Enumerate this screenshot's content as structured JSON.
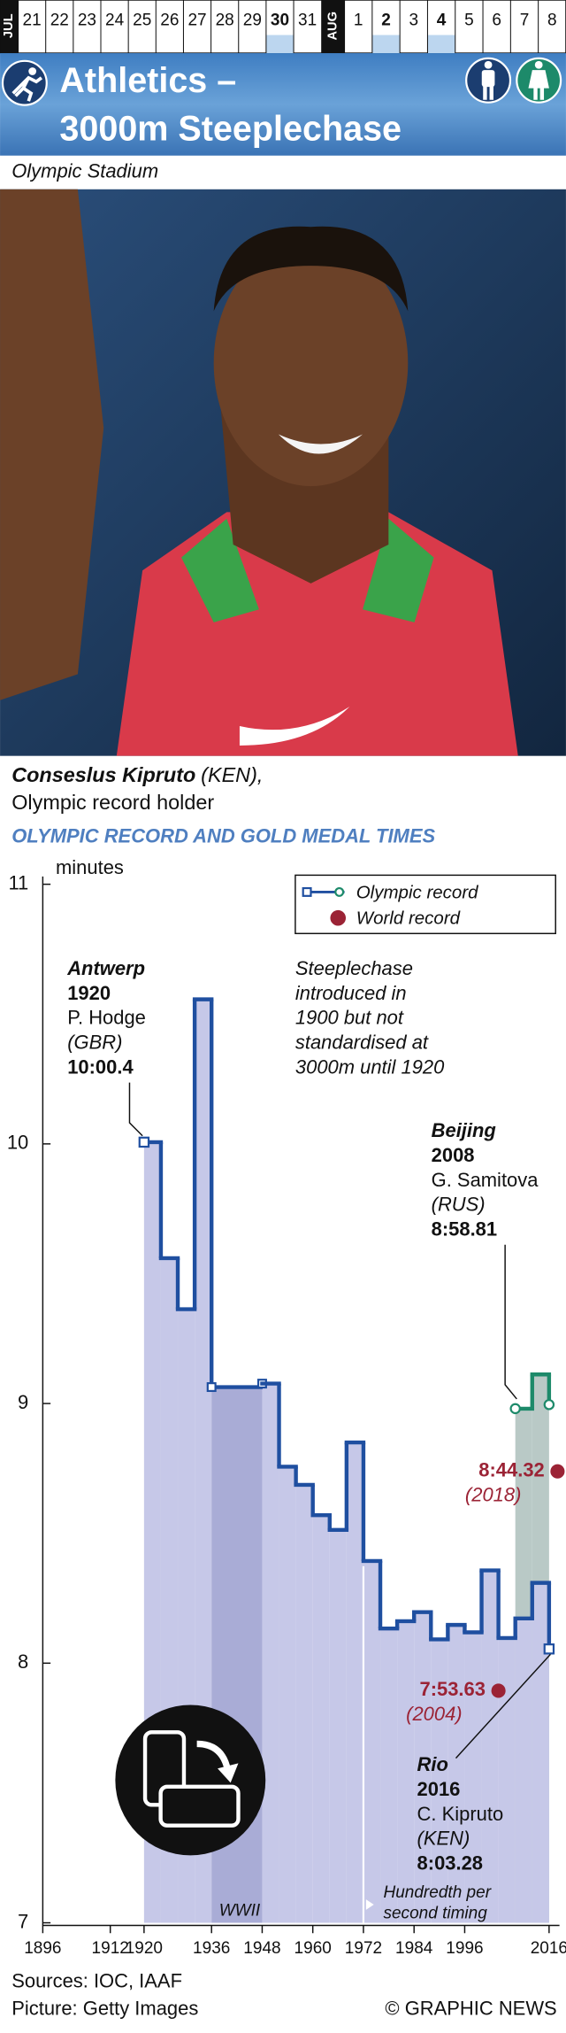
{
  "header": {
    "july_label": "JUL",
    "august_label": "AUG",
    "july_days": [
      "21",
      "22",
      "23",
      "24",
      "25",
      "26",
      "27",
      "28",
      "29",
      "30",
      "31"
    ],
    "august_days": [
      "1",
      "2",
      "3",
      "4",
      "5",
      "6",
      "7",
      "8"
    ],
    "july_highlight": [
      9
    ],
    "august_highlight": [
      1,
      3
    ],
    "title_line1": "Athletics –",
    "title_line2": "3000m Steeplechase",
    "venue": "Olympic Stadium"
  },
  "caption": {
    "name": "Conseslus Kipruto",
    "country": "(KEN),",
    "role": "Olympic record holder"
  },
  "chart_data": {
    "type": "step-line",
    "title": "Olympic Record and Gold Medal Times",
    "y_label": "minutes",
    "xlim": [
      1896,
      2020
    ],
    "xticks": [
      1896,
      1912,
      1920,
      1936,
      1948,
      1960,
      1972,
      1984,
      1996,
      2016
    ],
    "ylim": [
      7,
      11
    ],
    "yticks": [
      7,
      8,
      9,
      10,
      11
    ],
    "series": [
      {
        "name": "Olympic record",
        "color": "#1f4fa0",
        "area_color": "#c6c8e8",
        "gap_area_color": "#a9acd6",
        "x": [
          1920,
          1924,
          1928,
          1932,
          1936,
          1948,
          1952,
          1956,
          1960,
          1964,
          1968,
          1972,
          1976,
          1980,
          1984,
          1988,
          1992,
          1996,
          2000,
          2004,
          2008,
          2012,
          2016
        ],
        "values": [
          10.0067,
          9.56,
          9.3633,
          10.5567,
          9.0633,
          9.0767,
          8.7567,
          8.6867,
          8.57,
          8.5133,
          8.85,
          8.3933,
          8.1333,
          8.1617,
          8.1967,
          8.0918,
          8.1473,
          8.1187,
          8.3572,
          8.0968,
          8.1723,
          8.3093,
          8.0547
        ]
      },
      {
        "color": "#1d8a6a",
        "area_color": "#b9c9c6",
        "x": [
          2008,
          2012,
          2016
        ],
        "values": [
          8.9802,
          9.112,
          8.9958
        ]
      }
    ],
    "world_records": {
      "name": "World record",
      "color": "#9b2335",
      "x": [
        2004,
        2018
      ],
      "values": [
        7.8938,
        8.7387
      ],
      "value_labels": [
        "7:53.63",
        "8:44.32"
      ],
      "year_labels": [
        "(2004)",
        "(2018)"
      ]
    },
    "annotations": {
      "antwerp": [
        "Antwerp",
        "1920",
        "P. Hodge",
        "(GBR)",
        "10:00.4"
      ],
      "note": [
        "Steeplechase",
        "introduced in",
        "1900 but not",
        "standardised at",
        "3000m until 1920"
      ],
      "beijing": [
        "Beijing",
        "2008",
        "G. Samitova",
        "(RUS)",
        "8:58.81"
      ],
      "rio": [
        "Rio",
        "2016",
        "C. Kipruto",
        "(KEN)",
        "8:03.28"
      ],
      "wwii": "WWII",
      "timing": [
        "Hundredth per",
        "second timing"
      ]
    }
  },
  "footer": {
    "sources": "Sources: IOC, IAAF",
    "picture": "Picture: Getty Images",
    "credit": "© GRAPHIC NEWS"
  }
}
